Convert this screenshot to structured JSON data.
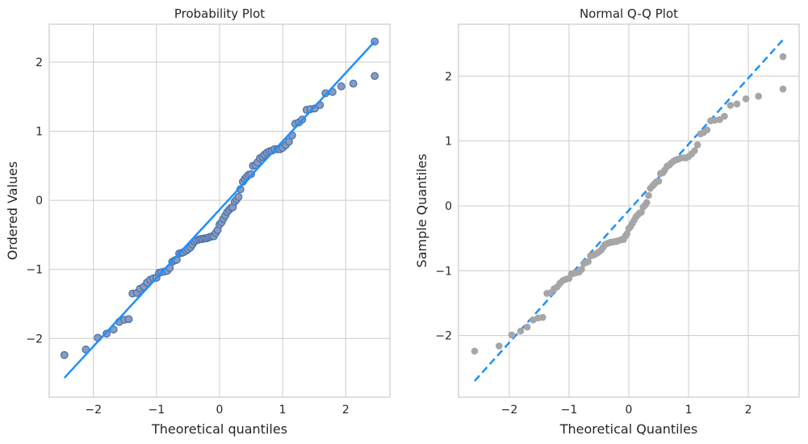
{
  "chart_data": [
    {
      "type": "scatter",
      "title": "Probability Plot",
      "xlabel": "Theoretical quantiles",
      "ylabel": "Ordered Values",
      "xlim": [
        -2.7,
        2.7
      ],
      "ylim": [
        -2.85,
        2.55
      ],
      "xticks": [
        -2,
        -1,
        0,
        1,
        2
      ],
      "yticks": [
        -2,
        -1,
        0,
        1,
        2
      ],
      "grid": true,
      "marker_fill": "#8a9cba",
      "marker_edge": "#4c72b0",
      "line_color": "#1e90ff",
      "fit_line": {
        "style": "solid",
        "x": [
          -2.46,
          2.46
        ],
        "y": [
          -2.57,
          2.3
        ]
      },
      "points": [
        [
          -2.46,
          -2.24
        ],
        [
          -2.12,
          -2.16
        ],
        [
          -1.93,
          -1.99
        ],
        [
          -1.79,
          -1.93
        ],
        [
          -1.68,
          -1.87
        ],
        [
          -1.59,
          -1.76
        ],
        [
          -1.51,
          -1.73
        ],
        [
          -1.44,
          -1.72
        ],
        [
          -1.38,
          -1.35
        ],
        [
          -1.31,
          -1.34
        ],
        [
          -1.26,
          -1.28
        ],
        [
          -1.2,
          -1.25
        ],
        [
          -1.15,
          -1.19
        ],
        [
          -1.1,
          -1.15
        ],
        [
          -1.05,
          -1.13
        ],
        [
          -1.0,
          -1.12
        ],
        [
          -0.96,
          -1.05
        ],
        [
          -0.92,
          -1.04
        ],
        [
          -0.87,
          -1.03
        ],
        [
          -0.83,
          -1.02
        ],
        [
          -0.79,
          -0.98
        ],
        [
          -0.75,
          -0.89
        ],
        [
          -0.71,
          -0.87
        ],
        [
          -0.68,
          -0.86
        ],
        [
          -0.64,
          -0.77
        ],
        [
          -0.6,
          -0.76
        ],
        [
          -0.57,
          -0.75
        ],
        [
          -0.53,
          -0.73
        ],
        [
          -0.5,
          -0.71
        ],
        [
          -0.46,
          -0.68
        ],
        [
          -0.43,
          -0.64
        ],
        [
          -0.4,
          -0.6
        ],
        [
          -0.37,
          -0.58
        ],
        [
          -0.33,
          -0.57
        ],
        [
          -0.3,
          -0.56
        ],
        [
          -0.27,
          -0.56
        ],
        [
          -0.24,
          -0.55
        ],
        [
          -0.21,
          -0.55
        ],
        [
          -0.18,
          -0.54
        ],
        [
          -0.15,
          -0.53
        ],
        [
          -0.12,
          -0.52
        ],
        [
          -0.09,
          -0.52
        ],
        [
          -0.06,
          -0.47
        ],
        [
          -0.03,
          -0.43
        ],
        [
          0.0,
          -0.35
        ],
        [
          0.03,
          -0.32
        ],
        [
          0.06,
          -0.27
        ],
        [
          0.09,
          -0.22
        ],
        [
          0.12,
          -0.17
        ],
        [
          0.15,
          -0.14
        ],
        [
          0.18,
          -0.11
        ],
        [
          0.21,
          -0.1
        ],
        [
          0.24,
          -0.02
        ],
        [
          0.27,
          0.01
        ],
        [
          0.3,
          0.05
        ],
        [
          0.33,
          0.16
        ],
        [
          0.37,
          0.27
        ],
        [
          0.4,
          0.31
        ],
        [
          0.43,
          0.34
        ],
        [
          0.46,
          0.37
        ],
        [
          0.5,
          0.38
        ],
        [
          0.53,
          0.5
        ],
        [
          0.57,
          0.51
        ],
        [
          0.6,
          0.55
        ],
        [
          0.64,
          0.61
        ],
        [
          0.68,
          0.63
        ],
        [
          0.71,
          0.66
        ],
        [
          0.75,
          0.69
        ],
        [
          0.79,
          0.71
        ],
        [
          0.83,
          0.72
        ],
        [
          0.87,
          0.74
        ],
        [
          0.92,
          0.74
        ],
        [
          0.96,
          0.74
        ],
        [
          1.0,
          0.76
        ],
        [
          1.05,
          0.8
        ],
        [
          1.1,
          0.85
        ],
        [
          1.15,
          0.94
        ],
        [
          1.2,
          1.11
        ],
        [
          1.26,
          1.13
        ],
        [
          1.31,
          1.17
        ],
        [
          1.38,
          1.31
        ],
        [
          1.44,
          1.32
        ],
        [
          1.51,
          1.33
        ],
        [
          1.59,
          1.38
        ],
        [
          1.68,
          1.55
        ],
        [
          1.79,
          1.57
        ],
        [
          1.93,
          1.65
        ],
        [
          2.12,
          1.69
        ],
        [
          2.46,
          1.8
        ],
        [
          2.46,
          2.3
        ]
      ]
    },
    {
      "type": "scatter",
      "title": "Normal Q-Q Plot",
      "xlabel": "Theoretical Quantiles",
      "ylabel": "Sample Quantiles",
      "xlim": [
        -2.85,
        2.85
      ],
      "ylim": [
        -2.95,
        2.8
      ],
      "xticks": [
        -2,
        -1,
        0,
        1,
        2
      ],
      "yticks": [
        -2,
        -1,
        0,
        1,
        2
      ],
      "grid": true,
      "marker_fill": "#a6a6a6",
      "line_color": "#1e90ff",
      "fit_line": {
        "style": "dashed",
        "x": [
          -2.58,
          2.58
        ],
        "y": [
          -2.7,
          2.56
        ]
      },
      "points": [
        [
          -2.58,
          -2.24
        ],
        [
          -2.17,
          -2.16
        ],
        [
          -1.96,
          -1.99
        ],
        [
          -1.81,
          -1.93
        ],
        [
          -1.7,
          -1.87
        ],
        [
          -1.6,
          -1.76
        ],
        [
          -1.52,
          -1.73
        ],
        [
          -1.44,
          -1.72
        ],
        [
          -1.37,
          -1.35
        ],
        [
          -1.31,
          -1.34
        ],
        [
          -1.25,
          -1.28
        ],
        [
          -1.2,
          -1.25
        ],
        [
          -1.15,
          -1.19
        ],
        [
          -1.1,
          -1.15
        ],
        [
          -1.05,
          -1.13
        ],
        [
          -1.0,
          -1.12
        ],
        [
          -0.96,
          -1.05
        ],
        [
          -0.92,
          -1.04
        ],
        [
          -0.87,
          -1.03
        ],
        [
          -0.83,
          -1.02
        ],
        [
          -0.79,
          -0.98
        ],
        [
          -0.75,
          -0.89
        ],
        [
          -0.71,
          -0.87
        ],
        [
          -0.68,
          -0.86
        ],
        [
          -0.64,
          -0.77
        ],
        [
          -0.6,
          -0.76
        ],
        [
          -0.57,
          -0.75
        ],
        [
          -0.53,
          -0.73
        ],
        [
          -0.5,
          -0.71
        ],
        [
          -0.46,
          -0.68
        ],
        [
          -0.43,
          -0.64
        ],
        [
          -0.4,
          -0.6
        ],
        [
          -0.36,
          -0.58
        ],
        [
          -0.33,
          -0.57
        ],
        [
          -0.3,
          -0.56
        ],
        [
          -0.27,
          -0.56
        ],
        [
          -0.24,
          -0.55
        ],
        [
          -0.21,
          -0.55
        ],
        [
          -0.18,
          -0.54
        ],
        [
          -0.15,
          -0.53
        ],
        [
          -0.12,
          -0.52
        ],
        [
          -0.09,
          -0.52
        ],
        [
          -0.06,
          -0.47
        ],
        [
          -0.03,
          -0.43
        ],
        [
          0.0,
          -0.35
        ],
        [
          0.03,
          -0.32
        ],
        [
          0.06,
          -0.27
        ],
        [
          0.09,
          -0.22
        ],
        [
          0.12,
          -0.17
        ],
        [
          0.15,
          -0.14
        ],
        [
          0.18,
          -0.11
        ],
        [
          0.21,
          -0.1
        ],
        [
          0.24,
          -0.02
        ],
        [
          0.27,
          0.01
        ],
        [
          0.3,
          0.05
        ],
        [
          0.33,
          0.16
        ],
        [
          0.36,
          0.27
        ],
        [
          0.4,
          0.31
        ],
        [
          0.43,
          0.34
        ],
        [
          0.46,
          0.37
        ],
        [
          0.5,
          0.38
        ],
        [
          0.53,
          0.5
        ],
        [
          0.57,
          0.51
        ],
        [
          0.6,
          0.55
        ],
        [
          0.64,
          0.61
        ],
        [
          0.68,
          0.63
        ],
        [
          0.71,
          0.66
        ],
        [
          0.75,
          0.69
        ],
        [
          0.79,
          0.71
        ],
        [
          0.83,
          0.72
        ],
        [
          0.87,
          0.74
        ],
        [
          0.92,
          0.74
        ],
        [
          0.96,
          0.74
        ],
        [
          1.0,
          0.76
        ],
        [
          1.05,
          0.8
        ],
        [
          1.1,
          0.85
        ],
        [
          1.15,
          0.94
        ],
        [
          1.2,
          1.11
        ],
        [
          1.25,
          1.13
        ],
        [
          1.31,
          1.17
        ],
        [
          1.37,
          1.31
        ],
        [
          1.44,
          1.32
        ],
        [
          1.52,
          1.33
        ],
        [
          1.6,
          1.38
        ],
        [
          1.7,
          1.55
        ],
        [
          1.81,
          1.57
        ],
        [
          1.96,
          1.65
        ],
        [
          2.17,
          1.69
        ],
        [
          2.58,
          1.8
        ],
        [
          2.58,
          2.3
        ]
      ]
    }
  ]
}
